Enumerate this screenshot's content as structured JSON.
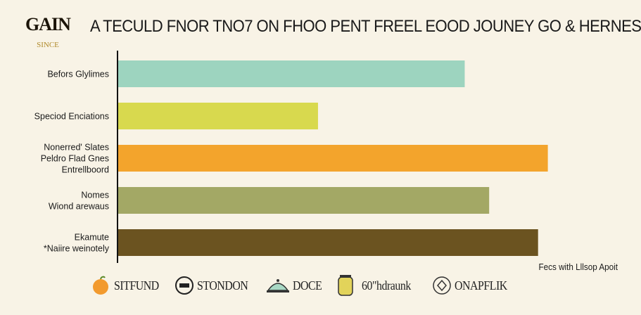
{
  "logo": {
    "text": "GAIN",
    "sub": "SINCE"
  },
  "header": {
    "title": "A TECULD FNOR TNO7 ON FHOO PENT FREEL EOOD JOUNEY GO & HERNES"
  },
  "chart_data": {
    "type": "bar",
    "orientation": "horizontal",
    "title": "A TECULD FNOR TNO7 ON FHOO PENT FREEL EOOD JOUNEY GO & HERNES",
    "categories": [
      "Befors Glylimes",
      "Speciod Enciations",
      "Nonerred' Slates\nPeldro Flad Gnes\nEntrellboord",
      "Nomes\nWiond arewaus",
      "Ekamute\n*Naiire weinotely"
    ],
    "values": [
      71,
      41,
      88,
      76,
      86
    ],
    "colors": [
      "#9dd4bf",
      "#d8d94e",
      "#f3a42c",
      "#a3a865",
      "#6b5320"
    ],
    "xlim": [
      0,
      100
    ],
    "xlabel": "",
    "ylabel": "",
    "grid": false
  },
  "footer": {
    "note": "Fecs with Lllsop Apoit",
    "sponsors": [
      {
        "label": "SITFUND",
        "icon": "apple-icon"
      },
      {
        "label": "STONDON",
        "icon": "badge-icon"
      },
      {
        "label": "DOCE",
        "icon": "cloche-icon"
      },
      {
        "label": "60\"hdraunk",
        "icon": "jar-icon"
      },
      {
        "label": "ONAPFLIK",
        "icon": "emblem-icon"
      }
    ]
  }
}
